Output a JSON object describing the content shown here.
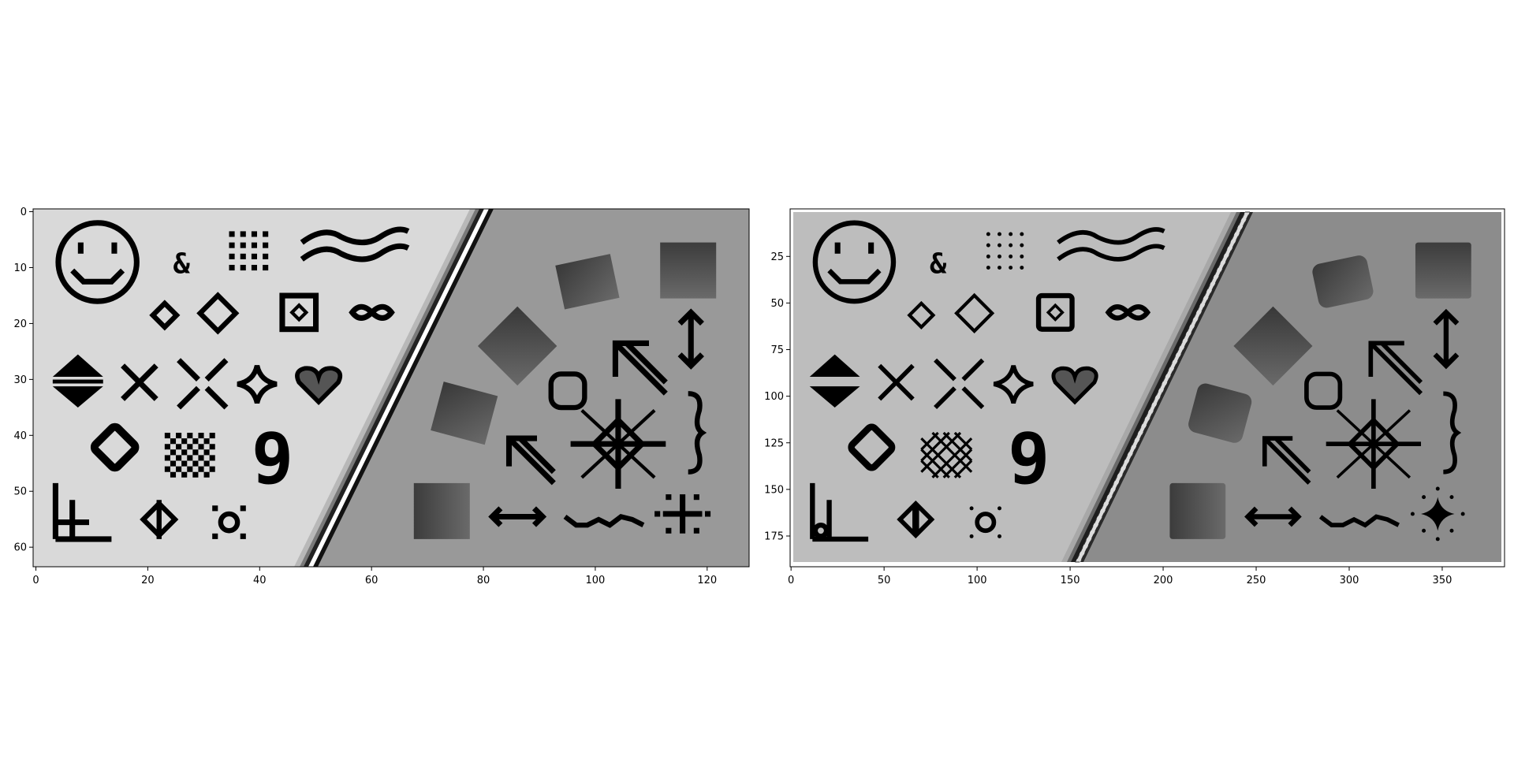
{
  "chart_data": [
    {
      "type": "image",
      "title": "",
      "xlabel": "",
      "ylabel": "",
      "xlim": [
        -0.5,
        127.5
      ],
      "ylim": [
        63.5,
        -0.5
      ],
      "x_ticks": [
        0,
        20,
        40,
        60,
        80,
        100,
        120
      ],
      "y_ticks": [
        0,
        10,
        20,
        30,
        40,
        50,
        60
      ],
      "colormap": "gray",
      "colors": {
        "left_region": "#d9d9d9",
        "right_region": "#999999",
        "glyph": "#000000",
        "gradient_dark": "#3c3c3c",
        "gradient_light": "#6a6a6a"
      },
      "glyphs": [
        "smiley",
        "ampersand",
        "dot-grid",
        "waves",
        "small-diamond",
        "diamond",
        "boxed-diamond",
        "infinity",
        "double-triangle",
        "cross",
        "split-cross",
        "star4",
        "heart",
        "ring-diamond",
        "checkerboard",
        "nine",
        "corner-bracket",
        "circled-bar",
        "sun-dots",
        "tilted-square",
        "rotated-square",
        "shaded-square",
        "octagon",
        "arrow-up-left",
        "updown-arrow",
        "compass-cross",
        "curly-brace",
        "double-arrow",
        "tilde-line",
        "sparkle"
      ]
    },
    {
      "type": "image",
      "title": "",
      "xlabel": "",
      "ylabel": "",
      "xlim": [
        -0.5,
        383.5
      ],
      "ylim": [
        191.5,
        -0.5
      ],
      "x_ticks": [
        0,
        50,
        100,
        150,
        200,
        250,
        300,
        350
      ],
      "y_ticks": [
        25,
        50,
        75,
        100,
        125,
        150,
        175
      ],
      "colormap": "gray",
      "colors": {
        "left_region": "#bdbdbd",
        "right_region": "#8c8c8c",
        "glyph": "#000000",
        "border": "#ffffff",
        "gradient_dark": "#383838",
        "gradient_light": "#646464"
      },
      "glyphs": [
        "smiley",
        "ampersand",
        "dot-grid",
        "waves",
        "small-diamond",
        "diamond",
        "boxed-diamond",
        "infinity",
        "double-triangle",
        "cross",
        "split-cross",
        "star4",
        "heart",
        "ring-diamond",
        "checkerboard",
        "nine",
        "corner-bracket",
        "circled-bar",
        "sun-dots",
        "tilted-square",
        "rotated-square",
        "shaded-square",
        "octagon",
        "arrow-up-left",
        "updown-arrow",
        "compass-cross",
        "curly-brace",
        "double-arrow",
        "tilde-line",
        "sparkle"
      ]
    }
  ]
}
